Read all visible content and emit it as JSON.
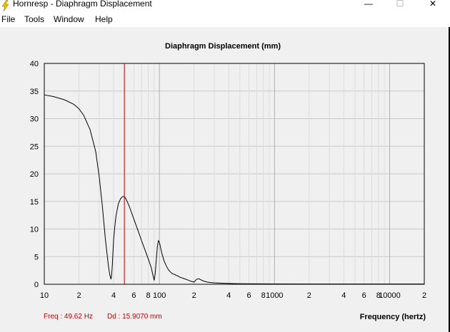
{
  "window": {
    "title": "Hornresp - Diaphragm Displacement",
    "minimize": "—",
    "maximize": "☐",
    "close": "✕",
    "icon": "lightning-icon"
  },
  "menu": [
    "File",
    "Tools",
    "Window",
    "Help"
  ],
  "status": {
    "freq": "Freq : 49.62 Hz",
    "dd": "Dd : 15.9070 mm"
  },
  "colors": {
    "cursor": "#c00000",
    "curve": "#000000",
    "grid": "#c8c8c8",
    "status_text": "#c00000"
  },
  "chart_data": {
    "type": "line",
    "title": "Diaphragm Displacement (mm)",
    "xlabel": "Frequency (hertz)",
    "ylabel": "",
    "x_scale": "log",
    "xlim": [
      10,
      20000
    ],
    "ylim": [
      0,
      40
    ],
    "y_ticks": [
      0,
      5,
      10,
      15,
      20,
      25,
      30,
      35,
      40
    ],
    "x_tick_labels": [
      {
        "x": 10,
        "label": "10"
      },
      {
        "x": 20,
        "label": "2"
      },
      {
        "x": 40,
        "label": "4"
      },
      {
        "x": 60,
        "label": "6"
      },
      {
        "x": 80,
        "label": "8"
      },
      {
        "x": 100,
        "label": "100"
      },
      {
        "x": 200,
        "label": "2"
      },
      {
        "x": 400,
        "label": "4"
      },
      {
        "x": 600,
        "label": "6"
      },
      {
        "x": 800,
        "label": "8"
      },
      {
        "x": 1000,
        "label": "1000"
      },
      {
        "x": 2000,
        "label": "2"
      },
      {
        "x": 4000,
        "label": "4"
      },
      {
        "x": 6000,
        "label": "6"
      },
      {
        "x": 8000,
        "label": "8"
      },
      {
        "x": 10000,
        "label": "10000"
      },
      {
        "x": 20000,
        "label": "2"
      }
    ],
    "cursor_x": 49.62,
    "series": [
      {
        "x": [
          10,
          12,
          15,
          18,
          20,
          22,
          25,
          28,
          30,
          32,
          34,
          36,
          37,
          38,
          38.5,
          39,
          39.5,
          40,
          41,
          42,
          44,
          46,
          48,
          50,
          52,
          55,
          60,
          65,
          70,
          75,
          80,
          85,
          88,
          90,
          92,
          94,
          96,
          98,
          100,
          102,
          105,
          110,
          115,
          120,
          125,
          130,
          135,
          140,
          145,
          150,
          160,
          170,
          180,
          190,
          200,
          210,
          220,
          230,
          240,
          260,
          280,
          300,
          350,
          400,
          500,
          700,
          1000,
          2000,
          5000,
          10000,
          20000
        ],
        "y": [
          34.3,
          34.0,
          33.4,
          32.6,
          31.8,
          30.6,
          28.0,
          24.0,
          19.5,
          14.0,
          8.0,
          3.5,
          1.8,
          0.9,
          1.8,
          3.5,
          5.8,
          8.0,
          10.5,
          12.4,
          14.6,
          15.5,
          15.9,
          15.8,
          15.2,
          14.0,
          11.8,
          9.8,
          7.9,
          6.2,
          4.6,
          3.0,
          1.6,
          0.7,
          2.0,
          4.5,
          6.8,
          7.9,
          7.6,
          6.8,
          5.6,
          4.2,
          3.3,
          2.6,
          2.2,
          1.9,
          1.8,
          1.6,
          1.5,
          1.3,
          1.1,
          0.9,
          0.7,
          0.5,
          0.4,
          0.9,
          1.0,
          0.8,
          0.6,
          0.4,
          0.3,
          0.25,
          0.2,
          0.15,
          0.1,
          0.08,
          0.06,
          0.05,
          0.05,
          0.05,
          0.05
        ]
      }
    ]
  }
}
